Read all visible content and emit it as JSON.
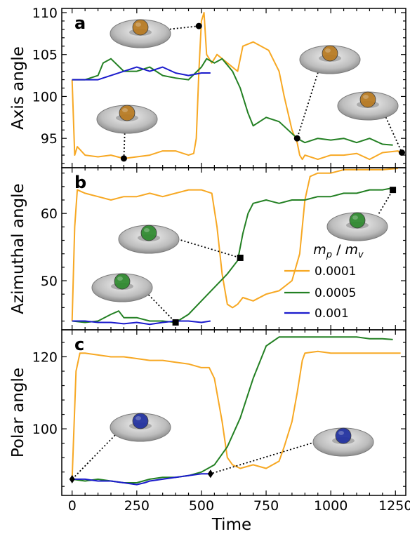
{
  "figure": {
    "xlabel": "Time",
    "legend_title": "m_p / m_v",
    "legend_title_parts": [
      "m",
      "p",
      " / ",
      "m",
      "v"
    ],
    "colors": {
      "0.0001": "#F7A823",
      "0.0005": "#238023",
      "0.001": "#1A1ACC"
    }
  },
  "chart_data": [
    {
      "type": "line",
      "panel_label": "a",
      "ylabel": "Axis angle",
      "xlim": [
        -40,
        1290
      ],
      "ylim": [
        91.5,
        110.5
      ],
      "xticks": [
        0,
        250,
        500,
        750,
        1000,
        1250
      ],
      "yticks": [
        95,
        100,
        105,
        110
      ],
      "series": [
        {
          "name": "0.0001",
          "color": "#F7A823",
          "x": [
            0,
            10,
            20,
            50,
            100,
            150,
            200,
            250,
            300,
            350,
            400,
            450,
            470,
            480,
            490,
            500,
            510,
            520,
            540,
            560,
            600,
            640,
            660,
            700,
            730,
            760,
            800,
            820,
            850,
            870,
            880,
            890,
            900,
            950,
            1000,
            1050,
            1100,
            1150,
            1200,
            1260,
            1275
          ],
          "y": [
            102,
            93,
            94,
            93,
            92.8,
            93,
            92.6,
            92.8,
            93,
            93.5,
            93.5,
            93,
            93.2,
            95,
            103,
            109,
            110,
            105,
            104,
            105,
            104,
            103,
            106,
            106.5,
            106,
            105.5,
            103,
            100,
            96,
            94.5,
            93,
            92.5,
            93,
            92.5,
            93,
            93,
            93.2,
            92.5,
            93.3,
            93.5,
            93
          ]
        },
        {
          "name": "0.0005",
          "color": "#238023",
          "x": [
            0,
            50,
            100,
            120,
            150,
            200,
            250,
            300,
            350,
            400,
            450,
            500,
            520,
            550,
            580,
            620,
            650,
            680,
            700,
            750,
            800,
            870,
            900,
            950,
            1000,
            1050,
            1100,
            1150,
            1200,
            1240
          ],
          "y": [
            102,
            102,
            102.5,
            104,
            104.5,
            103,
            103,
            103.5,
            102.5,
            102.2,
            102,
            103.5,
            104.5,
            104,
            104.5,
            103,
            101,
            98,
            96.5,
            97.5,
            97,
            95,
            94.5,
            95,
            94.8,
            95,
            94.5,
            95,
            94.3,
            94.2
          ]
        },
        {
          "name": "0.001",
          "color": "#1A1ACC",
          "x": [
            0,
            50,
            100,
            150,
            200,
            250,
            300,
            350,
            400,
            450,
            500,
            535
          ],
          "y": [
            102,
            102,
            102,
            102.5,
            103,
            103.5,
            103,
            103.5,
            102.8,
            102.5,
            102.8,
            102.8
          ]
        }
      ],
      "markers": [
        {
          "x": 200,
          "y": 92.6,
          "shape": "circle"
        },
        {
          "x": 490,
          "y": 108.4,
          "shape": "circle"
        },
        {
          "x": 870,
          "y": 95,
          "shape": "circle"
        },
        {
          "x": 1275,
          "y": 93.3,
          "shape": "circle"
        }
      ]
    },
    {
      "type": "line",
      "panel_label": "b",
      "ylabel": "Azimuthal angle",
      "xlim": [
        -40,
        1290
      ],
      "ylim": [
        42.7,
        66.8
      ],
      "xticks": [
        0,
        250,
        500,
        750,
        1000,
        1250
      ],
      "yticks": [
        50,
        60
      ],
      "series": [
        {
          "name": "0.0001",
          "color": "#F7A823",
          "x": [
            0,
            10,
            20,
            50,
            100,
            150,
            200,
            250,
            300,
            350,
            400,
            450,
            500,
            540,
            560,
            580,
            600,
            620,
            640,
            660,
            700,
            750,
            800,
            850,
            880,
            900,
            920,
            950,
            1000,
            1050,
            1100,
            1150,
            1200,
            1260
          ],
          "y": [
            44,
            58,
            63.5,
            63,
            62.5,
            62,
            62.5,
            62.5,
            63,
            62.5,
            63,
            63.5,
            63.5,
            63,
            58,
            51,
            46.5,
            46,
            46.5,
            47.5,
            47,
            48,
            48.5,
            50,
            54,
            62,
            65.5,
            66,
            66,
            66.5,
            66.5,
            66.5,
            66.5,
            66.7
          ]
        },
        {
          "name": "0.0005",
          "color": "#238023",
          "x": [
            0,
            50,
            100,
            150,
            180,
            200,
            250,
            300,
            350,
            400,
            450,
            500,
            550,
            600,
            640,
            660,
            680,
            700,
            750,
            800,
            850,
            900,
            950,
            1000,
            1050,
            1100,
            1150,
            1200,
            1240
          ],
          "y": [
            44,
            43.8,
            44,
            45,
            45.5,
            44.5,
            44.5,
            44,
            44,
            43.8,
            45,
            47,
            49,
            51,
            53,
            57,
            60,
            61.5,
            62,
            61.5,
            62,
            62,
            62.5,
            62.5,
            63,
            63,
            63.5,
            63.5,
            63.8
          ]
        },
        {
          "name": "0.001",
          "color": "#1A1ACC",
          "x": [
            0,
            50,
            100,
            150,
            200,
            250,
            300,
            350,
            400,
            450,
            500,
            535
          ],
          "y": [
            44,
            44,
            43.8,
            43.8,
            43.6,
            43.8,
            43.5,
            43.8,
            44,
            44,
            43.8,
            44
          ]
        }
      ],
      "markers": [
        {
          "x": 400,
          "y": 43.8,
          "shape": "square"
        },
        {
          "x": 650,
          "y": 53.4,
          "shape": "square"
        },
        {
          "x": 1240,
          "y": 63.5,
          "shape": "square"
        }
      ]
    },
    {
      "type": "line",
      "panel_label": "c",
      "ylabel": "Polar angle",
      "xlim": [
        -40,
        1290
      ],
      "ylim": [
        81.5,
        127.5
      ],
      "xticks": [
        0,
        250,
        500,
        750,
        1000,
        1250
      ],
      "yticks": [
        100,
        120
      ],
      "series": [
        {
          "name": "0.0001",
          "color": "#F7A823",
          "x": [
            0,
            15,
            30,
            50,
            100,
            150,
            200,
            250,
            300,
            350,
            400,
            450,
            500,
            530,
            550,
            580,
            600,
            620,
            650,
            700,
            750,
            800,
            820,
            850,
            870,
            890,
            900,
            950,
            1000,
            1100,
            1200,
            1270
          ],
          "y": [
            86,
            116,
            121,
            121,
            120.5,
            120,
            120,
            119.5,
            119,
            119,
            118.5,
            118,
            117,
            117,
            114,
            102,
            92,
            90,
            89,
            90,
            89,
            91,
            95,
            102,
            110,
            119,
            121,
            121.5,
            121,
            121,
            121,
            121
          ]
        },
        {
          "name": "0.0005",
          "color": "#238023",
          "x": [
            0,
            50,
            100,
            150,
            200,
            250,
            300,
            350,
            400,
            450,
            500,
            550,
            600,
            650,
            700,
            750,
            800,
            850,
            900,
            950,
            1000,
            1050,
            1100,
            1150,
            1200,
            1240
          ],
          "y": [
            86,
            85.5,
            86,
            85.5,
            85,
            85,
            86,
            86.5,
            86.5,
            87,
            88,
            90,
            95,
            103,
            114,
            123,
            125.5,
            125.5,
            125.5,
            125.5,
            125.5,
            125.5,
            125.5,
            125,
            125,
            124.8
          ]
        },
        {
          "name": "0.001",
          "color": "#1A1ACC",
          "x": [
            0,
            50,
            100,
            150,
            200,
            250,
            280,
            300,
            350,
            400,
            450,
            500,
            535
          ],
          "y": [
            86,
            86,
            85.5,
            85.5,
            85,
            84.5,
            85,
            85.5,
            86,
            86.5,
            87,
            87.5,
            87.5
          ]
        }
      ],
      "markers": [
        {
          "x": 0,
          "y": 86,
          "shape": "diamond"
        },
        {
          "x": 535,
          "y": 87.5,
          "shape": "diamond"
        }
      ]
    }
  ]
}
